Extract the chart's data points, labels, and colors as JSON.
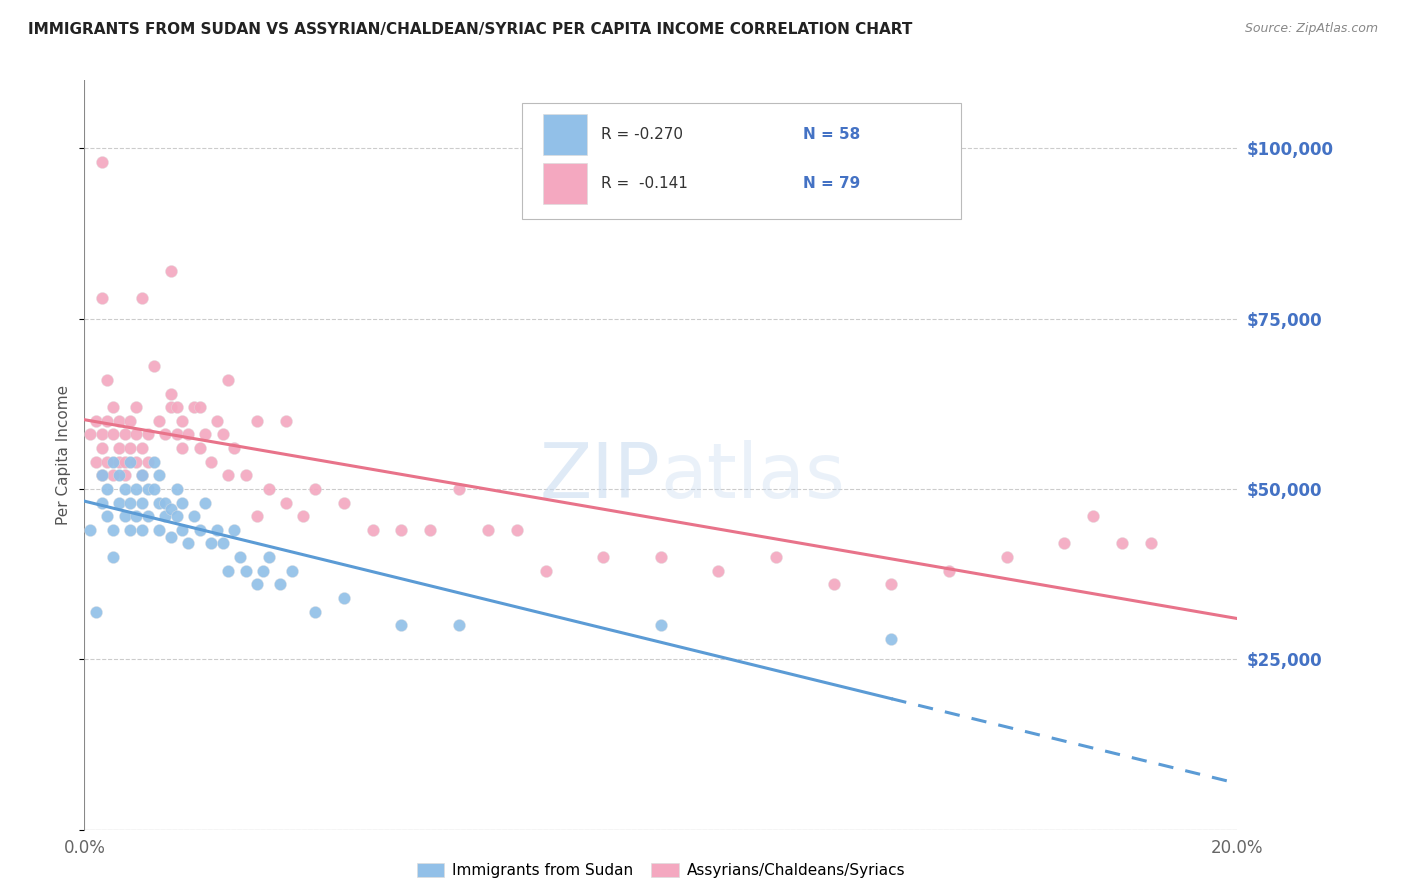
{
  "title": "IMMIGRANTS FROM SUDAN VS ASSYRIAN/CHALDEAN/SYRIAC PER CAPITA INCOME CORRELATION CHART",
  "source": "Source: ZipAtlas.com",
  "ylabel": "Per Capita Income",
  "xlim": [
    0.0,
    0.2
  ],
  "ylim": [
    0,
    110000
  ],
  "xticks": [
    0.0,
    0.05,
    0.1,
    0.15,
    0.2
  ],
  "xticklabels": [
    "0.0%",
    "",
    "",
    "",
    "20.0%"
  ],
  "ytick_positions": [
    0,
    25000,
    50000,
    75000,
    100000
  ],
  "ytick_labels_right": [
    "",
    "$25,000",
    "$50,000",
    "$75,000",
    "$100,000"
  ],
  "color_blue": "#92C0E8",
  "color_pink": "#F4A8C0",
  "color_blue_line": "#5B9BD5",
  "color_pink_line": "#E8738A",
  "color_blue_text": "#4472C4",
  "color_right_axis": "#4472C4",
  "watermark_color": "#C5D9F0",
  "legend_label_1": "Immigrants from Sudan",
  "legend_label_2": "Assyrians/Chaldeans/Syriacs",
  "blue_scatter_x": [
    0.001,
    0.002,
    0.003,
    0.003,
    0.004,
    0.004,
    0.005,
    0.005,
    0.005,
    0.006,
    0.006,
    0.007,
    0.007,
    0.008,
    0.008,
    0.008,
    0.009,
    0.009,
    0.01,
    0.01,
    0.01,
    0.011,
    0.011,
    0.012,
    0.012,
    0.013,
    0.013,
    0.013,
    0.014,
    0.014,
    0.015,
    0.015,
    0.016,
    0.016,
    0.017,
    0.017,
    0.018,
    0.019,
    0.02,
    0.021,
    0.022,
    0.023,
    0.024,
    0.025,
    0.026,
    0.027,
    0.028,
    0.03,
    0.031,
    0.032,
    0.034,
    0.036,
    0.04,
    0.045,
    0.055,
    0.065,
    0.1,
    0.14
  ],
  "blue_scatter_y": [
    44000,
    32000,
    48000,
    52000,
    46000,
    50000,
    54000,
    44000,
    40000,
    48000,
    52000,
    46000,
    50000,
    54000,
    48000,
    44000,
    50000,
    46000,
    52000,
    48000,
    44000,
    50000,
    46000,
    54000,
    50000,
    48000,
    44000,
    52000,
    48000,
    46000,
    43000,
    47000,
    50000,
    46000,
    48000,
    44000,
    42000,
    46000,
    44000,
    48000,
    42000,
    44000,
    42000,
    38000,
    44000,
    40000,
    38000,
    36000,
    38000,
    40000,
    36000,
    38000,
    32000,
    34000,
    30000,
    30000,
    30000,
    28000
  ],
  "pink_scatter_x": [
    0.001,
    0.002,
    0.002,
    0.003,
    0.003,
    0.003,
    0.004,
    0.004,
    0.004,
    0.005,
    0.005,
    0.005,
    0.006,
    0.006,
    0.006,
    0.007,
    0.007,
    0.007,
    0.008,
    0.008,
    0.009,
    0.009,
    0.009,
    0.01,
    0.01,
    0.011,
    0.011,
    0.012,
    0.013,
    0.014,
    0.015,
    0.015,
    0.016,
    0.016,
    0.017,
    0.017,
    0.018,
    0.019,
    0.02,
    0.021,
    0.022,
    0.023,
    0.024,
    0.025,
    0.026,
    0.028,
    0.03,
    0.032,
    0.035,
    0.038,
    0.04,
    0.045,
    0.05,
    0.055,
    0.06,
    0.065,
    0.07,
    0.075,
    0.08,
    0.09,
    0.1,
    0.11,
    0.12,
    0.13,
    0.14,
    0.15,
    0.16,
    0.17,
    0.175,
    0.18,
    0.185,
    0.003,
    0.003,
    0.01,
    0.015,
    0.02,
    0.025,
    0.03,
    0.035
  ],
  "pink_scatter_y": [
    58000,
    54000,
    60000,
    56000,
    52000,
    58000,
    54000,
    60000,
    66000,
    52000,
    58000,
    62000,
    54000,
    60000,
    56000,
    52000,
    58000,
    54000,
    60000,
    56000,
    54000,
    58000,
    62000,
    56000,
    52000,
    58000,
    54000,
    68000,
    60000,
    58000,
    64000,
    62000,
    58000,
    62000,
    60000,
    56000,
    58000,
    62000,
    56000,
    58000,
    54000,
    60000,
    58000,
    52000,
    56000,
    52000,
    46000,
    50000,
    48000,
    46000,
    50000,
    48000,
    44000,
    44000,
    44000,
    50000,
    44000,
    44000,
    38000,
    40000,
    40000,
    38000,
    40000,
    36000,
    36000,
    38000,
    40000,
    42000,
    46000,
    42000,
    42000,
    98000,
    78000,
    78000,
    82000,
    62000,
    66000,
    60000,
    60000
  ]
}
